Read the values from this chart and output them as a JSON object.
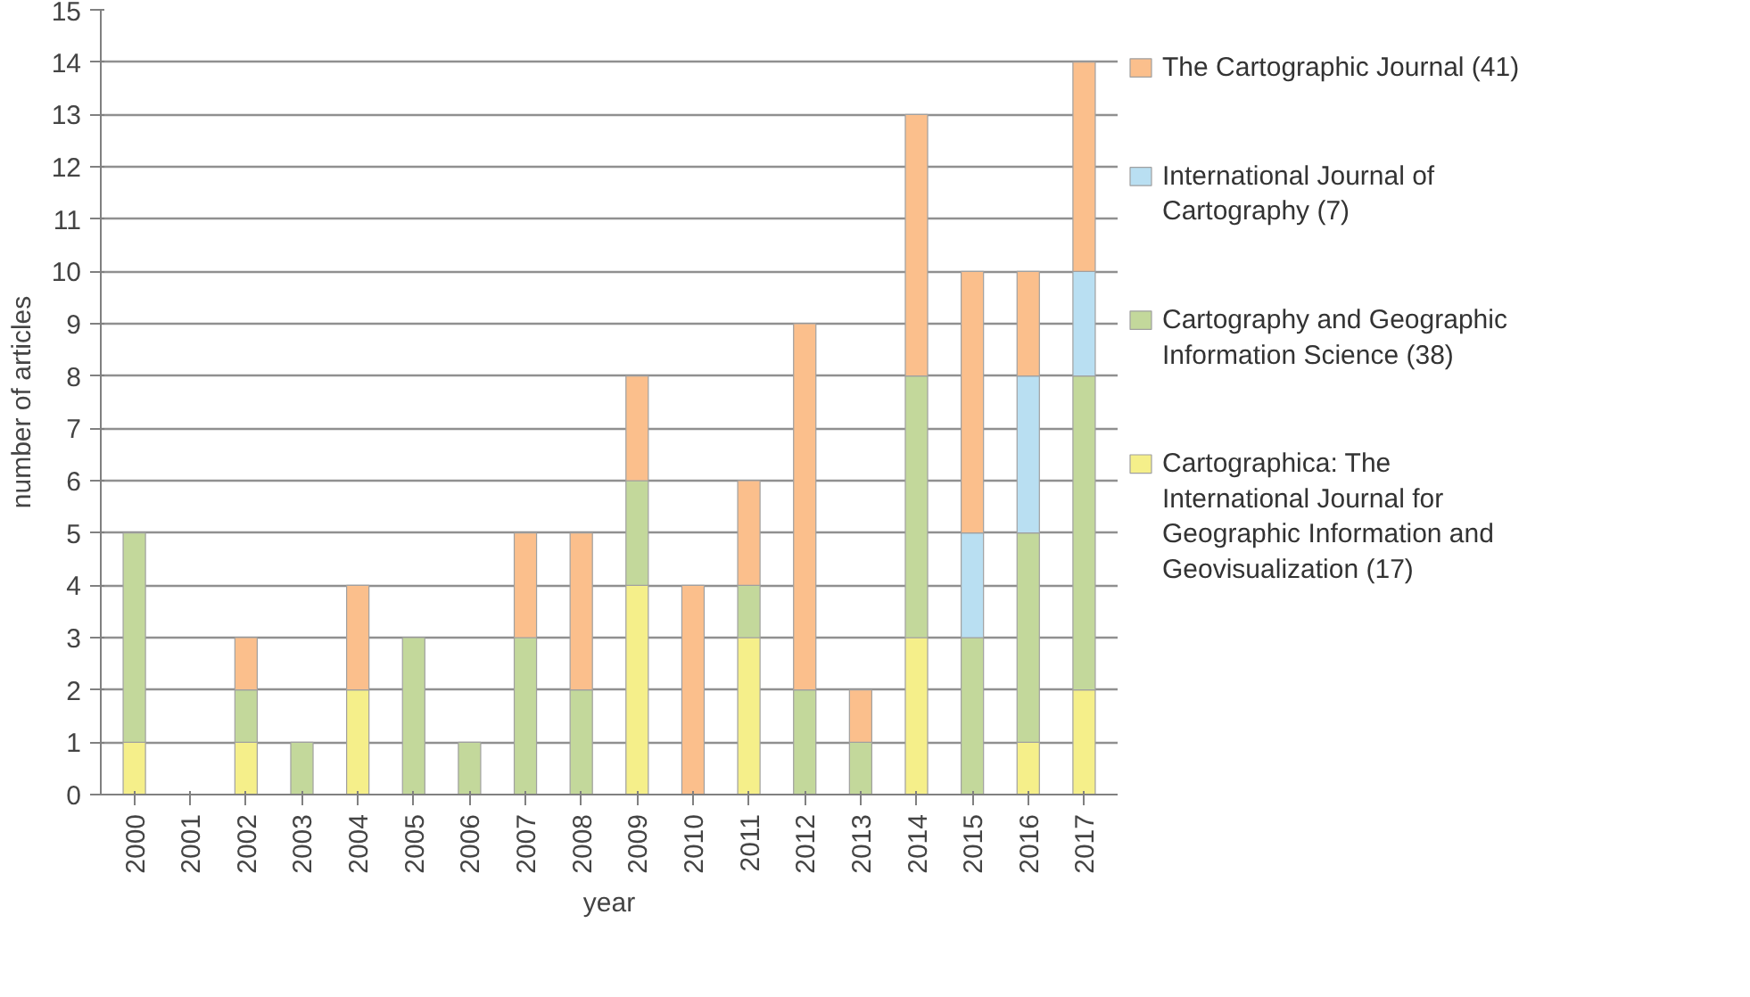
{
  "chart_data": {
    "type": "bar",
    "stacked": true,
    "xlabel": "year",
    "ylabel": "number of articles",
    "categories": [
      "2000",
      "2001",
      "2002",
      "2003",
      "2004",
      "2005",
      "2006",
      "2007",
      "2008",
      "2009",
      "2010",
      "2011",
      "2012",
      "2013",
      "2014",
      "2015",
      "2016",
      "2017"
    ],
    "series": [
      {
        "name": "Cartographica: The International Journal for Geographic Information and Geovisualization (17)",
        "color": "#f5ef8a",
        "values": [
          1,
          0,
          1,
          0,
          2,
          0,
          0,
          0,
          0,
          4,
          0,
          3,
          0,
          0,
          3,
          0,
          1,
          2
        ]
      },
      {
        "name": "Cartography and Geographic Information Science (38)",
        "color": "#c3d89b",
        "values": [
          4,
          0,
          1,
          1,
          0,
          3,
          1,
          3,
          2,
          2,
          0,
          1,
          2,
          1,
          5,
          3,
          4,
          6
        ]
      },
      {
        "name": "International Journal of Cartography (7)",
        "color": "#b9dff2",
        "values": [
          0,
          0,
          0,
          0,
          0,
          0,
          0,
          0,
          0,
          0,
          0,
          0,
          0,
          0,
          0,
          2,
          3,
          2
        ]
      },
      {
        "name": "The Cartographic Journal (41)",
        "color": "#fbbf8c",
        "values": [
          0,
          0,
          1,
          0,
          2,
          0,
          0,
          2,
          3,
          2,
          4,
          2,
          7,
          1,
          5,
          5,
          2,
          4
        ]
      }
    ],
    "ylim": [
      0,
      15
    ],
    "yticks": [
      0,
      1,
      2,
      3,
      4,
      5,
      6,
      7,
      8,
      9,
      10,
      11,
      12,
      13,
      14,
      15
    ],
    "grid": "y",
    "legend": "right"
  }
}
